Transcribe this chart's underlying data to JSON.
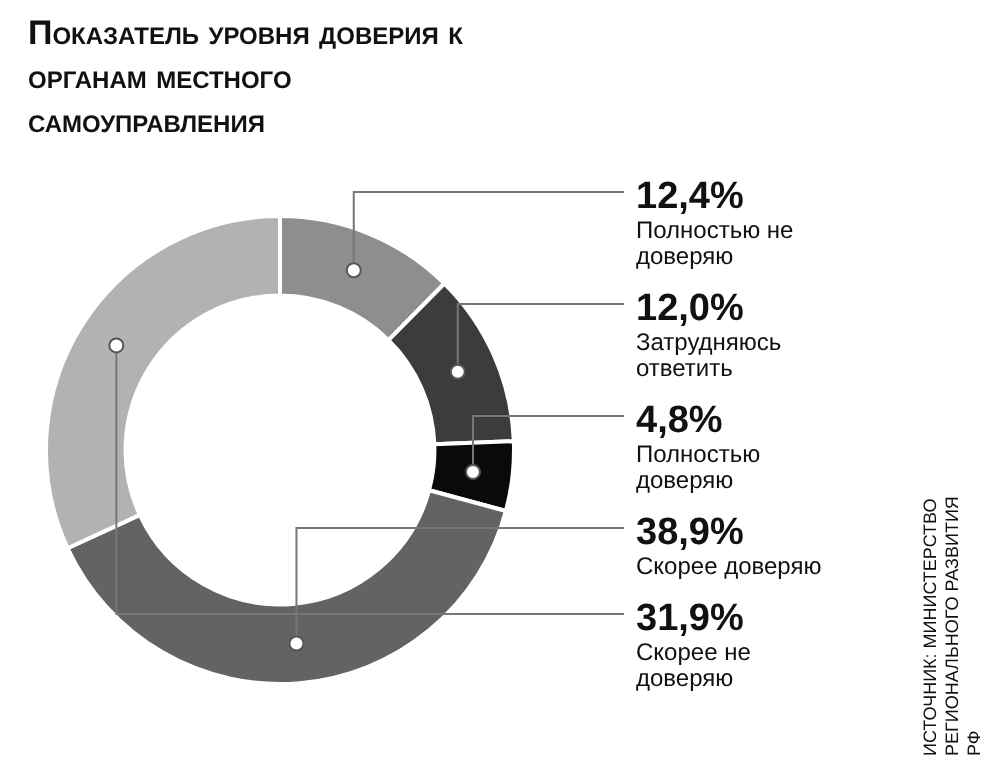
{
  "chart_data": {
    "type": "donut",
    "title": "Показатель уровня доверия к органам местного самоуправления",
    "categories": [
      "Полностью не доверяю",
      "Затрудняюсь ответить",
      "Полностью доверяю",
      "Скорее доверяю",
      "Скорее не доверяю"
    ],
    "values": [
      12.4,
      12.0,
      4.8,
      38.9,
      31.9
    ],
    "value_labels": [
      "12,4%",
      "12,0%",
      "4,8%",
      "38,9%",
      "31,9%"
    ],
    "colors": [
      "#8e8e8e",
      "#3c3c3c",
      "#0a0a0a",
      "#636363",
      "#b2b2b2"
    ],
    "legend": false,
    "annotations": [
      "ИСТОЧНИК: МИНИСТЕРСТВО РЕГИОНАЛЬНОГО РАЗВИТИЯ РФ"
    ]
  }
}
